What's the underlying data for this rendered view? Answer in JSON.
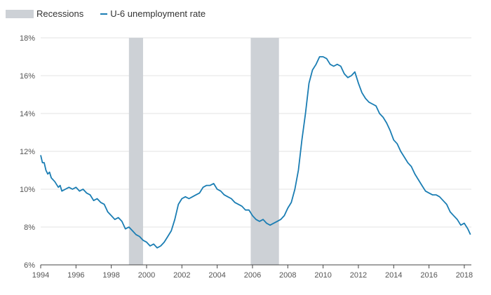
{
  "chart_data": {
    "type": "line",
    "title": "",
    "xlabel": "",
    "ylabel": "",
    "xlim": [
      1994,
      2018.4
    ],
    "ylim": [
      6,
      18
    ],
    "y_ticks": [
      6,
      8,
      10,
      12,
      14,
      16,
      18
    ],
    "y_tick_labels": [
      "6%",
      "8%",
      "10%",
      "12%",
      "14%",
      "16%",
      "18%"
    ],
    "x_ticks": [
      1994,
      1996,
      1998,
      2000,
      2002,
      2004,
      2006,
      2008,
      2010,
      2012,
      2014,
      2016,
      2018
    ],
    "x_tick_labels": [
      "1994",
      "1996",
      "1998",
      "2000",
      "2002",
      "2004",
      "2006",
      "2008",
      "2010",
      "2012",
      "2014",
      "2016",
      "2018"
    ],
    "grid": true,
    "legend_position": "top-left",
    "legend": [
      {
        "label": "Recessions",
        "kind": "shade",
        "color": "#cdd1d6"
      },
      {
        "label": "U-6 unemployment rate",
        "kind": "line",
        "color": "#1a7db3"
      }
    ],
    "recessions": [
      {
        "start": 1999.0,
        "end": 1999.8
      },
      {
        "start": 2005.9,
        "end": 2007.5
      }
    ],
    "series": [
      {
        "name": "U-6 unemployment rate",
        "color": "#1a7db3",
        "points": [
          [
            1994.0,
            11.8
          ],
          [
            1994.1,
            11.4
          ],
          [
            1994.2,
            11.4
          ],
          [
            1994.3,
            11.0
          ],
          [
            1994.4,
            10.8
          ],
          [
            1994.5,
            10.9
          ],
          [
            1994.6,
            10.6
          ],
          [
            1994.8,
            10.4
          ],
          [
            1995.0,
            10.1
          ],
          [
            1995.1,
            10.2
          ],
          [
            1995.2,
            9.9
          ],
          [
            1995.4,
            10.0
          ],
          [
            1995.6,
            10.1
          ],
          [
            1995.8,
            10.0
          ],
          [
            1996.0,
            10.1
          ],
          [
            1996.2,
            9.9
          ],
          [
            1996.4,
            10.0
          ],
          [
            1996.6,
            9.8
          ],
          [
            1996.8,
            9.7
          ],
          [
            1997.0,
            9.4
          ],
          [
            1997.2,
            9.5
          ],
          [
            1997.4,
            9.3
          ],
          [
            1997.6,
            9.2
          ],
          [
            1997.8,
            8.8
          ],
          [
            1998.0,
            8.6
          ],
          [
            1998.2,
            8.4
          ],
          [
            1998.4,
            8.5
          ],
          [
            1998.6,
            8.3
          ],
          [
            1998.8,
            7.9
          ],
          [
            1999.0,
            8.0
          ],
          [
            1999.2,
            7.8
          ],
          [
            1999.4,
            7.6
          ],
          [
            1999.6,
            7.5
          ],
          [
            1999.8,
            7.3
          ],
          [
            2000.0,
            7.2
          ],
          [
            2000.2,
            7.0
          ],
          [
            2000.4,
            7.1
          ],
          [
            2000.6,
            6.9
          ],
          [
            2000.8,
            7.0
          ],
          [
            2001.0,
            7.2
          ],
          [
            2001.2,
            7.5
          ],
          [
            2001.4,
            7.8
          ],
          [
            2001.6,
            8.4
          ],
          [
            2001.8,
            9.2
          ],
          [
            2002.0,
            9.5
          ],
          [
            2002.2,
            9.6
          ],
          [
            2002.4,
            9.5
          ],
          [
            2002.6,
            9.6
          ],
          [
            2002.8,
            9.7
          ],
          [
            2003.0,
            9.8
          ],
          [
            2003.2,
            10.1
          ],
          [
            2003.4,
            10.2
          ],
          [
            2003.6,
            10.2
          ],
          [
            2003.8,
            10.3
          ],
          [
            2004.0,
            10.0
          ],
          [
            2004.2,
            9.9
          ],
          [
            2004.4,
            9.7
          ],
          [
            2004.6,
            9.6
          ],
          [
            2004.8,
            9.5
          ],
          [
            2005.0,
            9.3
          ],
          [
            2005.2,
            9.2
          ],
          [
            2005.4,
            9.1
          ],
          [
            2005.6,
            8.9
          ],
          [
            2005.8,
            8.9
          ],
          [
            2006.0,
            8.6
          ],
          [
            2006.2,
            8.4
          ],
          [
            2006.4,
            8.3
          ],
          [
            2006.6,
            8.4
          ],
          [
            2006.8,
            8.2
          ],
          [
            2007.0,
            8.1
          ],
          [
            2007.2,
            8.2
          ],
          [
            2007.4,
            8.3
          ],
          [
            2007.6,
            8.4
          ],
          [
            2007.8,
            8.6
          ],
          [
            2008.0,
            9.0
          ],
          [
            2008.2,
            9.3
          ],
          [
            2008.4,
            10.0
          ],
          [
            2008.6,
            11.0
          ],
          [
            2008.8,
            12.6
          ],
          [
            2009.0,
            14.0
          ],
          [
            2009.2,
            15.6
          ],
          [
            2009.4,
            16.3
          ],
          [
            2009.6,
            16.6
          ],
          [
            2009.8,
            17.0
          ],
          [
            2010.0,
            17.0
          ],
          [
            2010.2,
            16.9
          ],
          [
            2010.4,
            16.6
          ],
          [
            2010.6,
            16.5
          ],
          [
            2010.8,
            16.6
          ],
          [
            2011.0,
            16.5
          ],
          [
            2011.2,
            16.1
          ],
          [
            2011.4,
            15.9
          ],
          [
            2011.6,
            16.0
          ],
          [
            2011.8,
            16.2
          ],
          [
            2012.0,
            15.6
          ],
          [
            2012.2,
            15.1
          ],
          [
            2012.4,
            14.8
          ],
          [
            2012.6,
            14.6
          ],
          [
            2012.8,
            14.5
          ],
          [
            2013.0,
            14.4
          ],
          [
            2013.2,
            14.0
          ],
          [
            2013.4,
            13.8
          ],
          [
            2013.6,
            13.5
          ],
          [
            2013.8,
            13.1
          ],
          [
            2014.0,
            12.6
          ],
          [
            2014.2,
            12.4
          ],
          [
            2014.4,
            12.0
          ],
          [
            2014.6,
            11.7
          ],
          [
            2014.8,
            11.4
          ],
          [
            2015.0,
            11.2
          ],
          [
            2015.2,
            10.8
          ],
          [
            2015.4,
            10.5
          ],
          [
            2015.6,
            10.2
          ],
          [
            2015.8,
            9.9
          ],
          [
            2016.0,
            9.8
          ],
          [
            2016.2,
            9.7
          ],
          [
            2016.4,
            9.7
          ],
          [
            2016.6,
            9.6
          ],
          [
            2016.8,
            9.4
          ],
          [
            2017.0,
            9.2
          ],
          [
            2017.2,
            8.8
          ],
          [
            2017.4,
            8.6
          ],
          [
            2017.6,
            8.4
          ],
          [
            2017.8,
            8.1
          ],
          [
            2018.0,
            8.2
          ],
          [
            2018.2,
            7.9
          ],
          [
            2018.35,
            7.6
          ]
        ]
      }
    ]
  }
}
